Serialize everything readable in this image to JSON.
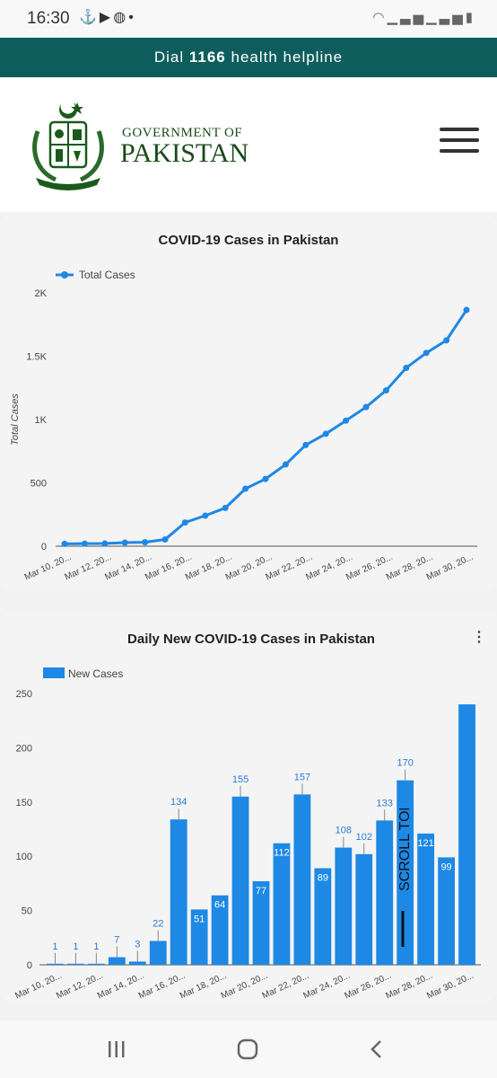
{
  "status_bar": {
    "time": "16:30",
    "left_icons": [
      "usb-icon",
      "youtube-icon",
      "app-icon",
      "dot-icon"
    ],
    "right_icons": [
      "wifi-icon",
      "signal-icon",
      "signal-icon",
      "battery-icon"
    ]
  },
  "helpline": {
    "prefix": "Dial ",
    "number": "1166",
    "suffix": " health helpline"
  },
  "header": {
    "line1": "GOVERNMENT OF",
    "line2": "PAKISTAN"
  },
  "scroll_top_label": "SCROLL TOP",
  "chart_data": [
    {
      "type": "line",
      "title": "COVID-19 Cases in Pakistan",
      "ylabel": "Total Cases",
      "xlabel": "",
      "ylim": [
        0,
        2000
      ],
      "yticks": [
        0,
        500,
        1000,
        1500,
        2000
      ],
      "ytick_labels": [
        "0",
        "500",
        "1K",
        "1.5K",
        "2K"
      ],
      "x": [
        "Mar 10, 2020",
        "Mar 11, 2020",
        "Mar 12, 2020",
        "Mar 13, 2020",
        "Mar 14, 2020",
        "Mar 15, 2020",
        "Mar 16, 2020",
        "Mar 17, 2020",
        "Mar 18, 2020",
        "Mar 19, 2020",
        "Mar 20, 2020",
        "Mar 21, 2020",
        "Mar 22, 2020",
        "Mar 23, 2020",
        "Mar 24, 2020",
        "Mar 25, 2020",
        "Mar 26, 2020",
        "Mar 27, 2020",
        "Mar 28, 2020",
        "Mar 29, 2020",
        "Mar 30, 2020"
      ],
      "xtick_labels": [
        "Mar 10, 20...",
        "Mar 12, 20...",
        "Mar 14, 20...",
        "Mar 16, 20...",
        "Mar 18, 20...",
        "Mar 20, 20...",
        "Mar 22, 20...",
        "Mar 24, 20...",
        "Mar 26, 20...",
        "Mar 28, 20...",
        "Mar 30, 20..."
      ],
      "series": [
        {
          "name": "Total Cases",
          "color": "#1e88e5",
          "values": [
            19,
            20,
            21,
            28,
            31,
            53,
            187,
            241,
            302,
            454,
            531,
            645,
            799,
            887,
            991,
            1098,
            1230,
            1408,
            1526,
            1625,
            1865
          ]
        }
      ],
      "legend": "top-left",
      "grid": false
    },
    {
      "type": "bar",
      "title": "Daily New COVID-19 Cases in Pakistan",
      "ylim": [
        0,
        250
      ],
      "yticks": [
        0,
        50,
        100,
        150,
        200,
        250
      ],
      "ytick_labels": [
        "0",
        "50",
        "100",
        "150",
        "200",
        "250"
      ],
      "categories": [
        "Mar 10, 2020",
        "Mar 11, 2020",
        "Mar 12, 2020",
        "Mar 13, 2020",
        "Mar 14, 2020",
        "Mar 15, 2020",
        "Mar 16, 2020",
        "Mar 17, 2020",
        "Mar 18, 2020",
        "Mar 19, 2020",
        "Mar 20, 2020",
        "Mar 21, 2020",
        "Mar 22, 2020",
        "Mar 23, 2020",
        "Mar 24, 2020",
        "Mar 25, 2020",
        "Mar 26, 2020",
        "Mar 27, 2020",
        "Mar 28, 2020",
        "Mar 29, 2020",
        "Mar 30, 2020"
      ],
      "xtick_labels": [
        "Mar 10, 20...",
        "Mar 12, 20...",
        "Mar 14, 20...",
        "Mar 16, 20...",
        "Mar 18, 20...",
        "Mar 20, 20...",
        "Mar 22, 20...",
        "Mar 24, 20...",
        "Mar 26, 20...",
        "Mar 28, 20...",
        "Mar 30, 20..."
      ],
      "series": [
        {
          "name": "New Cases",
          "color": "#1e88e5",
          "values": [
            1,
            1,
            1,
            7,
            3,
            22,
            134,
            51,
            64,
            155,
            77,
            112,
            157,
            89,
            108,
            102,
            133,
            170,
            121,
            99,
            240
          ]
        }
      ],
      "data_labels": [
        "1",
        "1",
        "1",
        "7",
        "3",
        "22",
        "134",
        "51",
        "64",
        "155",
        "77",
        "112",
        "157",
        "89",
        "108",
        "102",
        "133",
        "170",
        "121",
        "99",
        ""
      ],
      "legend": "top-left",
      "grid": false
    }
  ]
}
